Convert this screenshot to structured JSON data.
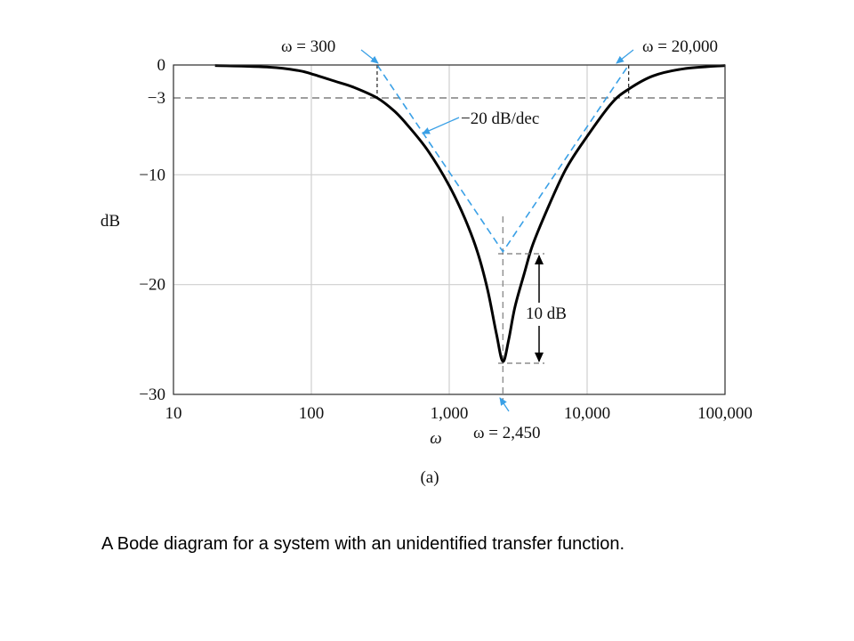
{
  "chart_data": {
    "type": "line",
    "title": "",
    "xlabel": "ω",
    "ylabel": "dB",
    "xscale": "log",
    "xlim": [
      10,
      100000
    ],
    "ylim": [
      -30,
      0
    ],
    "x_ticks": [
      {
        "value": 10,
        "label": "10"
      },
      {
        "value": 100,
        "label": "100"
      },
      {
        "value": 1000,
        "label": "1,000"
      },
      {
        "value": 10000,
        "label": "10,000"
      },
      {
        "value": 100000,
        "label": "100,000"
      }
    ],
    "y_ticks": [
      {
        "value": 0,
        "label": "0"
      },
      {
        "value": -3,
        "label": "−3"
      },
      {
        "value": -10,
        "label": "−10"
      },
      {
        "value": -20,
        "label": "−20"
      },
      {
        "value": -30,
        "label": "−30"
      }
    ],
    "grid": true,
    "series": [
      {
        "role": "magnitude",
        "color": "#000000",
        "x": [
          20,
          50,
          80,
          100,
          150,
          200,
          300,
          400,
          500,
          700,
          1000,
          1300,
          1600,
          1900,
          2200,
          2450,
          2700,
          3000,
          3500,
          4000,
          5000,
          7000,
          10000,
          15000,
          20000,
          30000,
          50000,
          100000
        ],
        "y": [
          -0.05,
          -0.2,
          -0.5,
          -0.8,
          -1.5,
          -2.0,
          -3.0,
          -4.2,
          -5.5,
          -7.8,
          -11.0,
          -14.0,
          -17.0,
          -20.5,
          -24.5,
          -27.0,
          -25.0,
          -22.0,
          -19.0,
          -16.5,
          -13.5,
          -9.5,
          -6.5,
          -3.5,
          -2.2,
          -1.0,
          -0.35,
          -0.05
        ]
      },
      {
        "role": "asymptote",
        "color": "#3aa0e6",
        "dashed": true,
        "x": [
          300,
          2450,
          20000
        ],
        "y": [
          0,
          -17,
          0
        ]
      }
    ],
    "reference_lines": [
      {
        "axis": "y",
        "value": -3
      },
      {
        "axis": "x",
        "value": 2450
      }
    ],
    "annotations": {
      "w300": "ω = 300",
      "w20000": "ω = 20,000",
      "w2450": "ω = 2,450",
      "slope": "−20 dB/dec",
      "gap": "10 dB"
    },
    "panel_label": "(a)"
  },
  "caption": "A Bode diagram for a system with an unidentified transfer function."
}
